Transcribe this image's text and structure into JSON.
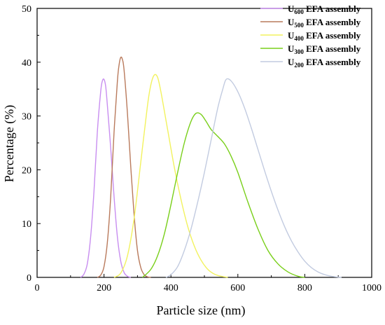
{
  "chart_data": {
    "type": "line",
    "xlabel": "Particle size (nm)",
    "ylabel": "Percentage (%)",
    "xlim": [
      0,
      1000
    ],
    "ylim": [
      0,
      50
    ],
    "x_ticks": [
      "0",
      "200",
      "400",
      "600",
      "800",
      "1000"
    ],
    "y_ticks": [
      "0",
      "10",
      "20",
      "30",
      "40",
      "50"
    ],
    "grid": false,
    "legend_position": "top-right",
    "series": [
      {
        "name": "U600 EFA assembly",
        "label_main": "U",
        "label_sub": "600",
        "label_rest": " EFA assembly",
        "color": "#c88ef0",
        "x": [
          130,
          140,
          150,
          160,
          170,
          180,
          190,
          195,
          200,
          205,
          210,
          220,
          230,
          240,
          250,
          260,
          270,
          280
        ],
        "y": [
          0,
          0.6,
          2.5,
          7.5,
          16,
          27,
          34.5,
          36.5,
          36.8,
          35.5,
          32,
          24,
          15,
          7.5,
          3,
          0.9,
          0.2,
          0
        ]
      },
      {
        "name": "U500 EFA assembly",
        "label_main": "U",
        "label_sub": "500",
        "label_rest": " EFA assembly",
        "color": "#b97a5c",
        "x": [
          180,
          190,
          200,
          210,
          220,
          230,
          240,
          245,
          250,
          255,
          260,
          270,
          280,
          290,
          300,
          310,
          320,
          330,
          340
        ],
        "y": [
          0,
          0.4,
          2,
          6.5,
          15,
          27,
          36.5,
          39.5,
          40.9,
          40.5,
          38.5,
          30.5,
          20.5,
          11.5,
          5,
          1.8,
          0.5,
          0.1,
          0
        ]
      },
      {
        "name": "U400 EFA assembly",
        "label_main": "U",
        "label_sub": "400",
        "label_rest": " EFA assembly",
        "color": "#f2f25e",
        "x": [
          230,
          250,
          270,
          290,
          310,
          330,
          340,
          350,
          360,
          370,
          390,
          410,
          430,
          450,
          470,
          490,
          510,
          530,
          550,
          570
        ],
        "y": [
          0,
          0.8,
          4,
          11,
          21.5,
          32,
          35.8,
          37.6,
          37.2,
          34.5,
          27.5,
          20.5,
          14.5,
          9.5,
          5.8,
          3.2,
          1.5,
          0.6,
          0.2,
          0
        ]
      },
      {
        "name": "U300 EFA assembly",
        "label_main": "U",
        "label_sub": "300",
        "label_rest": " EFA assembly",
        "color": "#79cf1a",
        "x": [
          315,
          340,
          360,
          380,
          400,
          420,
          440,
          460,
          475,
          490,
          505,
          520,
          540,
          560,
          580,
          600,
          630,
          660,
          690,
          720,
          750,
          780,
          800
        ],
        "y": [
          0,
          1.5,
          4,
          8,
          13.5,
          19.5,
          25,
          29,
          30.5,
          30.3,
          29,
          27.5,
          26.2,
          24.8,
          22.5,
          19.5,
          14,
          9,
          5,
          2.5,
          1,
          0.2,
          0
        ]
      },
      {
        "name": "U200 EFA assembly",
        "label_main": "U",
        "label_sub": "200",
        "label_rest": " EFA assembly",
        "color": "#c2cbe0",
        "x": [
          385,
          400,
          420,
          440,
          460,
          480,
          500,
          520,
          540,
          555,
          565,
          580,
          600,
          620,
          640,
          660,
          680,
          700,
          720,
          740,
          760,
          780,
          800,
          820,
          840,
          860,
          880,
          900,
          910
        ],
        "y": [
          0,
          0.5,
          2,
          5,
          9,
          14,
          19.5,
          25.5,
          31.5,
          35,
          36.8,
          36.5,
          34.5,
          31.5,
          27.8,
          23.8,
          19.8,
          16,
          12.5,
          9.4,
          6.8,
          4.7,
          3,
          1.8,
          1,
          0.5,
          0.2,
          0.05,
          0
        ]
      }
    ]
  }
}
